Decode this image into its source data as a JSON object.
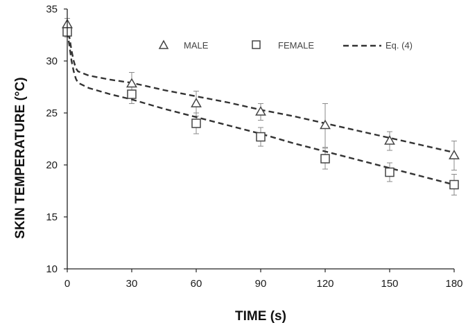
{
  "chart_data": {
    "type": "line",
    "title": "",
    "xlabel": "TIME (s)",
    "ylabel": "SKIN TEMPERATURE (°C)",
    "xlim": [
      0,
      180
    ],
    "ylim": [
      10,
      35
    ],
    "x_ticks": [
      0,
      30,
      60,
      90,
      120,
      150,
      180
    ],
    "y_ticks": [
      10,
      15,
      20,
      25,
      30,
      35
    ],
    "grid": false,
    "legend_position": "top",
    "series": [
      {
        "name": "MALE",
        "style": "triangle-markers",
        "x": [
          0,
          30,
          60,
          90,
          120,
          150,
          180
        ],
        "y": [
          33.5,
          27.8,
          25.9,
          25.1,
          23.8,
          22.3,
          20.9
        ],
        "error": [
          0.6,
          1.1,
          1.2,
          0.8,
          2.1,
          0.9,
          1.4
        ]
      },
      {
        "name": "FEMALE",
        "style": "square-markers",
        "x": [
          0,
          30,
          60,
          90,
          120,
          150,
          180
        ],
        "y": [
          32.8,
          26.8,
          24.0,
          22.7,
          20.6,
          19.3,
          18.1
        ],
        "error": [
          0.5,
          0.9,
          1.0,
          0.9,
          1.0,
          0.9,
          1.0
        ]
      },
      {
        "name": "Eq. (4)",
        "style": "dashed-line",
        "x": [
          0,
          1,
          2,
          3,
          4,
          5,
          10,
          20,
          30,
          45,
          60,
          75,
          90,
          105,
          120,
          135,
          150,
          165,
          180
        ],
        "y": [
          33.5,
          32.3,
          31.0,
          30.0,
          29.3,
          29.0,
          28.6,
          28.2,
          27.9,
          27.2,
          26.6,
          26.0,
          25.3,
          24.7,
          24.0,
          23.3,
          22.6,
          21.9,
          21.2
        ]
      },
      {
        "name": "Eq. (4)",
        "style": "dashed-line",
        "x": [
          0,
          1,
          2,
          3,
          4,
          5,
          10,
          20,
          30,
          45,
          60,
          75,
          90,
          105,
          120,
          135,
          150,
          165,
          180
        ],
        "y": [
          32.8,
          31.5,
          30.0,
          29.0,
          28.3,
          27.9,
          27.4,
          26.8,
          26.3,
          25.4,
          24.6,
          23.8,
          23.0,
          22.1,
          21.3,
          20.5,
          19.7,
          18.9,
          18.1
        ]
      }
    ],
    "colors": {
      "axis": "#222222",
      "marker": "#444444",
      "line": "#333333"
    }
  }
}
